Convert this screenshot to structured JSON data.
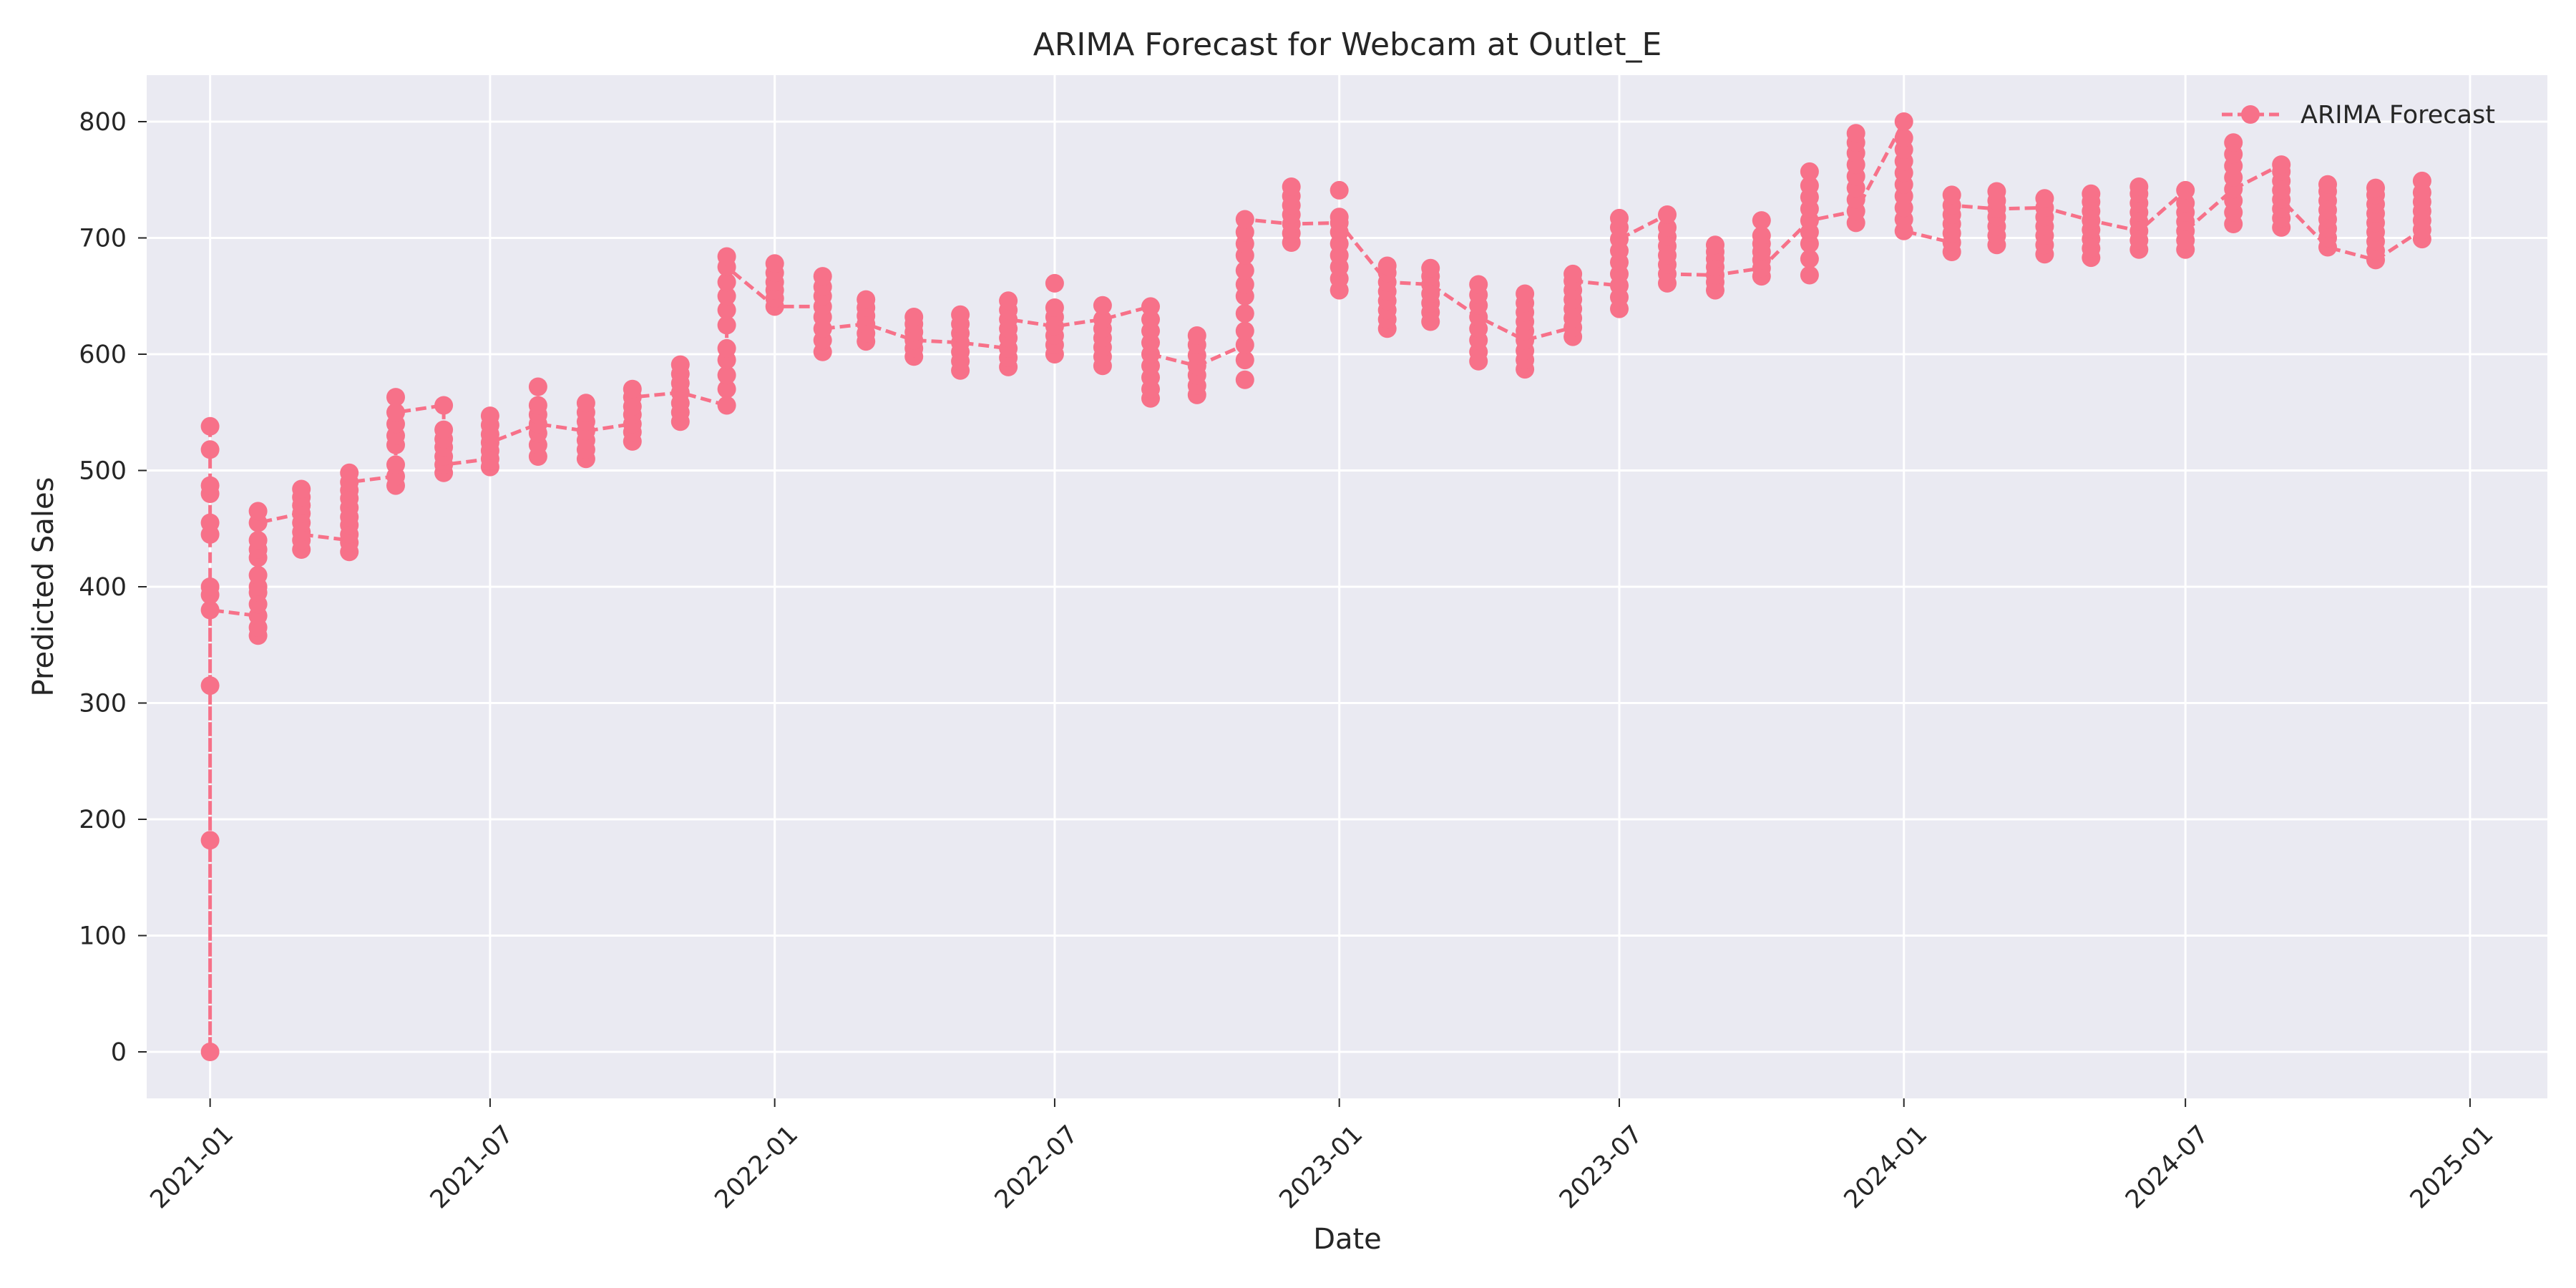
{
  "chart_data": {
    "type": "line",
    "title": "ARIMA Forecast for Webcam at Outlet_E",
    "xlabel": "Date",
    "ylabel": "Predicted Sales",
    "xlim": [
      "2020-11-21",
      "2025-02-20"
    ],
    "ylim": [
      -40,
      840
    ],
    "x_ticks": [
      "2021-01",
      "2021-07",
      "2022-01",
      "2022-07",
      "2023-01",
      "2023-07",
      "2024-01",
      "2024-07",
      "2025-01"
    ],
    "y_ticks": [
      0,
      100,
      200,
      300,
      400,
      500,
      600,
      700,
      800
    ],
    "grid": true,
    "legend": {
      "position": "top-right",
      "entries": [
        "ARIMA Forecast"
      ]
    },
    "style": {
      "color": "#F77189",
      "background": "#EAEAF2",
      "line": "dashed",
      "marker": "circle"
    },
    "series": [
      {
        "name": "ARIMA Forecast",
        "points": [
          [
            "2021-01-01",
            [
              0,
              182,
              315,
              380,
              393,
              400,
              445,
              455,
              480,
              487,
              518,
              538
            ]
          ],
          [
            "2021-02-01",
            [
              358,
              365,
              375,
              385,
              395,
              400,
              410,
              425,
              432,
              440,
              455,
              465
            ]
          ],
          [
            "2021-03-01",
            [
              432,
              440,
              447,
              455,
              463,
              470,
              477,
              484
            ]
          ],
          [
            "2021-04-01",
            [
              430,
              438,
              445,
              453,
              460,
              468,
              476,
              483,
              490,
              498
            ]
          ],
          [
            "2021-05-01",
            [
              487,
              495,
              505,
              522,
              530,
              540,
              550,
              563
            ]
          ],
          [
            "2021-06-01",
            [
              498,
              505,
              512,
              520,
              527,
              535,
              556
            ]
          ],
          [
            "2021-07-01",
            [
              503,
              510,
              517,
              524,
              531,
              539,
              547
            ]
          ],
          [
            "2021-08-01",
            [
              512,
              522,
              532,
              540,
              548,
              556,
              572
            ]
          ],
          [
            "2021-09-01",
            [
              510,
              518,
              526,
              534,
              542,
              550,
              558
            ]
          ],
          [
            "2021-10-01",
            [
              525,
              533,
              540,
              548,
              555,
              563,
              570
            ]
          ],
          [
            "2021-11-01",
            [
              542,
              550,
              558,
              567,
              575,
              583,
              591
            ]
          ],
          [
            "2021-12-01",
            [
              556,
              570,
              582,
              595,
              605,
              625,
              638,
              650,
              662,
              675,
              684
            ]
          ],
          [
            "2022-01-01",
            [
              641,
              648,
              655,
              662,
              670,
              678
            ]
          ],
          [
            "2022-02-01",
            [
              602,
              612,
              622,
              632,
              641,
              650,
              658,
              667
            ]
          ],
          [
            "2022-03-01",
            [
              611,
              618,
              626,
              633,
              640,
              647
            ]
          ],
          [
            "2022-04-01",
            [
              598,
              605,
              612,
              619,
              626,
              632
            ]
          ],
          [
            "2022-05-01",
            [
              586,
              594,
              602,
              610,
              618,
              626,
              634
            ]
          ],
          [
            "2022-06-01",
            [
              589,
              597,
              605,
              614,
              622,
              630,
              638,
              646
            ]
          ],
          [
            "2022-07-01",
            [
              600,
              608,
              616,
              624,
              632,
              640,
              661
            ]
          ],
          [
            "2022-08-01",
            [
              590,
              598,
              606,
              614,
              622,
              630,
              642
            ]
          ],
          [
            "2022-09-01",
            [
              562,
              570,
              580,
              590,
              600,
              610,
              620,
              630,
              641
            ]
          ],
          [
            "2022-10-01",
            [
              565,
              573,
              582,
              590,
              599,
              608,
              616
            ]
          ],
          [
            "2022-11-01",
            [
              578,
              595,
              608,
              620,
              635,
              650,
              660,
              672,
              685,
              695,
              705,
              716
            ]
          ],
          [
            "2022-12-01",
            [
              696,
              704,
              712,
              720,
              728,
              736,
              744
            ]
          ],
          [
            "2023-01-01",
            [
              655,
              665,
              675,
              685,
              695,
              705,
              713,
              718,
              741
            ]
          ],
          [
            "2023-02-01",
            [
              622,
              630,
              638,
              646,
              654,
              662,
              670,
              676
            ]
          ],
          [
            "2023-03-01",
            [
              628,
              636,
              644,
              652,
              660,
              667,
              674
            ]
          ],
          [
            "2023-04-01",
            [
              594,
              602,
              612,
              622,
              632,
              642,
              651,
              660
            ]
          ],
          [
            "2023-05-01",
            [
              587,
              595,
              603,
              612,
              620,
              628,
              636,
              644,
              652
            ]
          ],
          [
            "2023-06-01",
            [
              615,
              623,
              631,
              639,
              647,
              655,
              663,
              669
            ]
          ],
          [
            "2023-07-01",
            [
              639,
              649,
              659,
              669,
              679,
              689,
              699,
              709,
              717
            ]
          ],
          [
            "2023-08-01",
            [
              661,
              669,
              677,
              685,
              693,
              701,
              709,
              720
            ]
          ],
          [
            "2023-09-01",
            [
              655,
              662,
              668,
              675,
              682,
              688,
              694
            ]
          ],
          [
            "2023-10-01",
            [
              667,
              674,
              681,
              688,
              695,
              702,
              715
            ]
          ],
          [
            "2023-11-01",
            [
              668,
              682,
              695,
              705,
              715,
              725,
              735,
              745,
              757
            ]
          ],
          [
            "2023-12-01",
            [
              713,
              723,
              733,
              743,
              753,
              763,
              773,
              782,
              790
            ]
          ],
          [
            "2024-01-01",
            [
              706,
              716,
              726,
              736,
              746,
              756,
              766,
              776,
              786,
              800
            ]
          ],
          [
            "2024-02-01",
            [
              688,
              696,
              704,
              712,
              720,
              728,
              737
            ]
          ],
          [
            "2024-03-01",
            [
              694,
              702,
              710,
              718,
              725,
              732,
              740
            ]
          ],
          [
            "2024-04-01",
            [
              686,
              694,
              702,
              710,
              718,
              726,
              734
            ]
          ],
          [
            "2024-05-01",
            [
              683,
              691,
              699,
              707,
              715,
              723,
              731,
              738
            ]
          ],
          [
            "2024-06-01",
            [
              690,
              698,
              706,
              714,
              722,
              730,
              738,
              744
            ]
          ],
          [
            "2024-07-01",
            [
              690,
              698,
              706,
              714,
              722,
              730,
              741
            ]
          ],
          [
            "2024-08-01",
            [
              712,
              722,
              732,
              742,
              752,
              762,
              772,
              782
            ]
          ],
          [
            "2024-09-01",
            [
              709,
              717,
              725,
              733,
              741,
              749,
              757,
              763
            ]
          ],
          [
            "2024-10-01",
            [
              692,
              700,
              708,
              716,
              724,
              732,
              740,
              746
            ]
          ],
          [
            "2024-11-01",
            [
              681,
              689,
              697,
              705,
              713,
              721,
              729,
              737,
              743
            ]
          ],
          [
            "2024-12-01",
            [
              699,
              707,
              715,
              723,
              731,
              739,
              749
            ]
          ]
        ],
        "line_path": [
          [
            "2021-01-01",
            538
          ],
          [
            "2021-01-01",
            0
          ],
          [
            "2021-01-01",
            380
          ],
          [
            "2021-02-01",
            375
          ],
          [
            "2021-02-01",
            455
          ],
          [
            "2021-03-01",
            463
          ],
          [
            "2021-03-01",
            445
          ],
          [
            "2021-04-01",
            440
          ],
          [
            "2021-04-01",
            490
          ],
          [
            "2021-05-01",
            495
          ],
          [
            "2021-05-01",
            550
          ],
          [
            "2021-06-01",
            556
          ],
          [
            "2021-06-01",
            505
          ],
          [
            "2021-07-01",
            510
          ],
          [
            "2021-07-01",
            524
          ],
          [
            "2021-08-01",
            540
          ],
          [
            "2021-09-01",
            534
          ],
          [
            "2021-10-01",
            540
          ],
          [
            "2021-10-01",
            563
          ],
          [
            "2021-11-01",
            567
          ],
          [
            "2021-12-01",
            556
          ],
          [
            "2021-12-01",
            675
          ],
          [
            "2022-01-01",
            641
          ],
          [
            "2022-02-01",
            641
          ],
          [
            "2022-02-01",
            622
          ],
          [
            "2022-03-01",
            626
          ],
          [
            "2022-04-01",
            612
          ],
          [
            "2022-05-01",
            610
          ],
          [
            "2022-06-01",
            605
          ],
          [
            "2022-06-01",
            630
          ],
          [
            "2022-07-01",
            624
          ],
          [
            "2022-08-01",
            630
          ],
          [
            "2022-09-01",
            641
          ],
          [
            "2022-09-01",
            600
          ],
          [
            "2022-10-01",
            590
          ],
          [
            "2022-11-01",
            608
          ],
          [
            "2022-11-01",
            716
          ],
          [
            "2022-12-01",
            712
          ],
          [
            "2023-01-01",
            713
          ],
          [
            "2023-02-01",
            662
          ],
          [
            "2023-03-01",
            660
          ],
          [
            "2023-04-01",
            632
          ],
          [
            "2023-05-01",
            612
          ],
          [
            "2023-06-01",
            623
          ],
          [
            "2023-06-01",
            663
          ],
          [
            "2023-07-01",
            659
          ],
          [
            "2023-07-01",
            699
          ],
          [
            "2023-08-01",
            720
          ],
          [
            "2023-08-01",
            669
          ],
          [
            "2023-09-01",
            668
          ],
          [
            "2023-10-01",
            674
          ],
          [
            "2023-11-01",
            715
          ],
          [
            "2023-12-01",
            723
          ],
          [
            "2024-01-01",
            800
          ],
          [
            "2024-01-01",
            706
          ],
          [
            "2024-02-01",
            696
          ],
          [
            "2024-02-01",
            728
          ],
          [
            "2024-03-01",
            725
          ],
          [
            "2024-04-01",
            726
          ],
          [
            "2024-05-01",
            715
          ],
          [
            "2024-06-01",
            706
          ],
          [
            "2024-07-01",
            741
          ],
          [
            "2024-07-01",
            706
          ],
          [
            "2024-08-01",
            742
          ],
          [
            "2024-09-01",
            763
          ],
          [
            "2024-09-01",
            733
          ],
          [
            "2024-10-01",
            692
          ],
          [
            "2024-11-01",
            681
          ],
          [
            "2024-12-01",
            707
          ]
        ]
      }
    ]
  }
}
